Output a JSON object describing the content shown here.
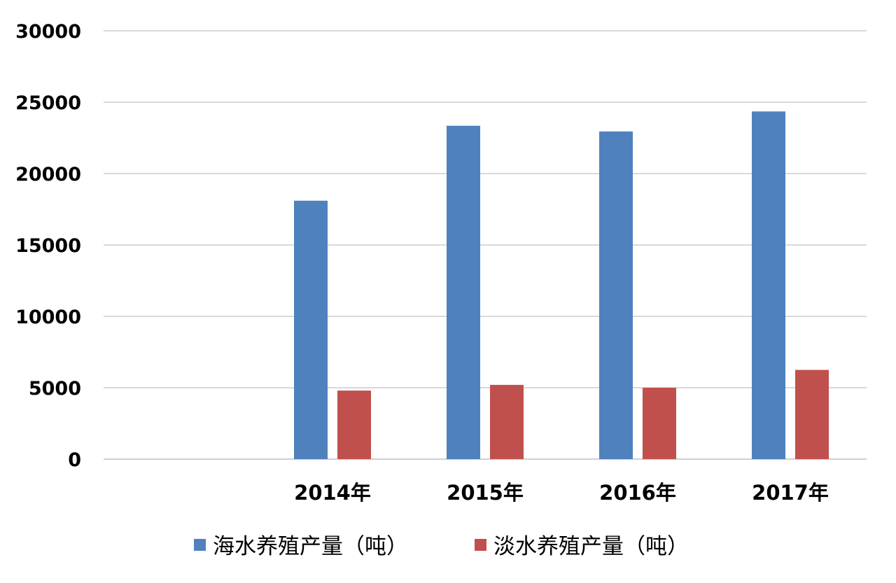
{
  "chart_data": {
    "type": "bar",
    "title": "",
    "xlabel": "",
    "ylabel": "",
    "categories": [
      "",
      "2014年",
      "2015年",
      "2016年",
      "2017年"
    ],
    "series": [
      {
        "name": "海水养殖产量（吨）",
        "color": "#4f81bd",
        "values": [
          0,
          18100,
          23350,
          22950,
          24350
        ]
      },
      {
        "name": "淡水养殖产量（吨）",
        "color": "#c0504d",
        "values": [
          0,
          4800,
          5200,
          5000,
          6250
        ]
      }
    ],
    "ylim": [
      0,
      30000
    ],
    "yticks": [
      0,
      5000,
      10000,
      15000,
      20000,
      25000,
      30000
    ],
    "grid": true,
    "legend_position": "bottom"
  }
}
